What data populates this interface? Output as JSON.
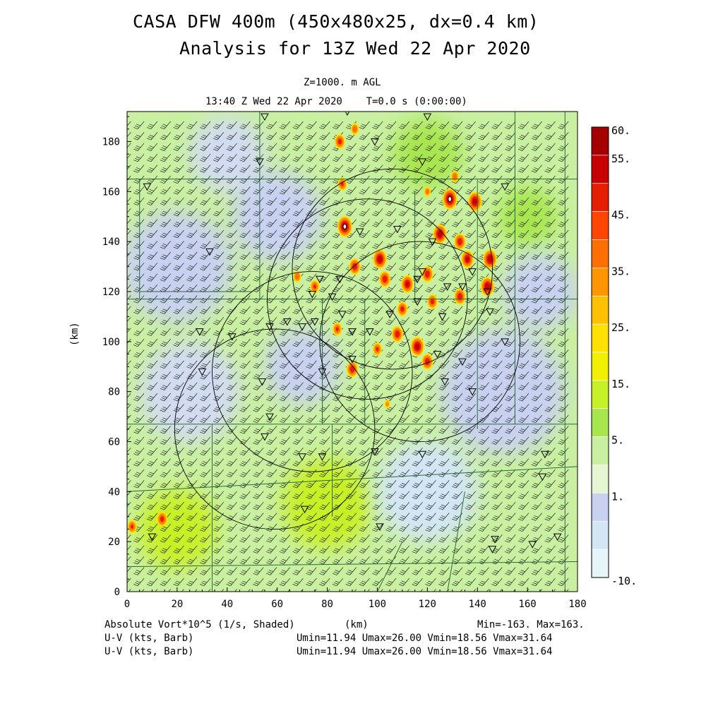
{
  "header": {
    "title_line1": "CASA DFW 400m (450x480x25, dx=0.4 km)",
    "title_line2": "Analysis for 13Z Wed 22 Apr 2020",
    "level": "Z=1000. m AGL",
    "time": "13:40 Z Wed 22 Apr 2020    T=0.0 s (0:00:00)"
  },
  "chart_data": {
    "type": "heatmap",
    "xlabel": "(km)",
    "ylabel": "(km)",
    "xlim": [
      0,
      180
    ],
    "ylim": [
      0,
      192
    ],
    "xticks": [
      "0",
      "20",
      "40",
      "60",
      "80",
      "100",
      "120",
      "140",
      "160",
      "180"
    ],
    "yticks": [
      "0",
      "20",
      "40",
      "60",
      "80",
      "100",
      "120",
      "140",
      "160",
      "180"
    ],
    "field": "Absolute Vort*10^5 (1/s, Shaded)",
    "min_label": "Min=-163.",
    "max_label": "Max=163.",
    "colorbar": {
      "labels": [
        "60.",
        "55.",
        "45.",
        "35.",
        "25.",
        "15.",
        "5.",
        "1.",
        "-10."
      ],
      "colors": [
        "#a50000",
        "#c80000",
        "#e61e00",
        "#ff4600",
        "#ff6e00",
        "#ff9600",
        "#ffc000",
        "#ffe100",
        "#f0f000",
        "#c8f028",
        "#a8e650",
        "#c8f0a0",
        "#e6f5d2",
        "#c8d2f0",
        "#d2e6f5",
        "#e6f5fa"
      ]
    },
    "radar_centers_km": [
      [
        96,
        117
      ],
      [
        74,
        88
      ],
      [
        117,
        100
      ],
      [
        59,
        65
      ],
      [
        106,
        129
      ]
    ],
    "radar_range_km": 40,
    "hotspots": [
      {
        "x": 87,
        "y": 146,
        "v": 60
      },
      {
        "x": 91,
        "y": 130,
        "v": 45
      },
      {
        "x": 101,
        "y": 133,
        "v": 55
      },
      {
        "x": 103,
        "y": 125,
        "v": 45
      },
      {
        "x": 112,
        "y": 123,
        "v": 50
      },
      {
        "x": 120,
        "y": 127,
        "v": 45
      },
      {
        "x": 125,
        "y": 143,
        "v": 55
      },
      {
        "x": 129,
        "y": 157,
        "v": 60
      },
      {
        "x": 139,
        "y": 156,
        "v": 55
      },
      {
        "x": 133,
        "y": 140,
        "v": 45
      },
      {
        "x": 136,
        "y": 133,
        "v": 50
      },
      {
        "x": 145,
        "y": 133,
        "v": 55
      },
      {
        "x": 144,
        "y": 122,
        "v": 55
      },
      {
        "x": 133,
        "y": 118,
        "v": 45
      },
      {
        "x": 122,
        "y": 116,
        "v": 40
      },
      {
        "x": 110,
        "y": 113,
        "v": 40
      },
      {
        "x": 108,
        "y": 103,
        "v": 45
      },
      {
        "x": 116,
        "y": 98,
        "v": 55
      },
      {
        "x": 120,
        "y": 92,
        "v": 45
      },
      {
        "x": 100,
        "y": 97,
        "v": 35
      },
      {
        "x": 90,
        "y": 89,
        "v": 45
      },
      {
        "x": 84,
        "y": 105,
        "v": 35
      },
      {
        "x": 75,
        "y": 122,
        "v": 35
      },
      {
        "x": 68,
        "y": 126,
        "v": 30
      },
      {
        "x": 86,
        "y": 163,
        "v": 35
      },
      {
        "x": 85,
        "y": 180,
        "v": 40
      },
      {
        "x": 91,
        "y": 185,
        "v": 30
      },
      {
        "x": 120,
        "y": 160,
        "v": 25
      },
      {
        "x": 131,
        "y": 166,
        "v": 30
      },
      {
        "x": 2,
        "y": 26,
        "v": 35
      },
      {
        "x": 14,
        "y": 29,
        "v": 40
      },
      {
        "x": 104,
        "y": 75,
        "v": 20
      }
    ],
    "triangles_km": [
      [
        55,
        190
      ],
      [
        120,
        190
      ],
      [
        88,
        192
      ],
      [
        99,
        180
      ],
      [
        53,
        172
      ],
      [
        118,
        172
      ],
      [
        151,
        162
      ],
      [
        33,
        136
      ],
      [
        93,
        144
      ],
      [
        108,
        145
      ],
      [
        122,
        140
      ],
      [
        85,
        125
      ],
      [
        77,
        125
      ],
      [
        74,
        119
      ],
      [
        82,
        118
      ],
      [
        86,
        111
      ],
      [
        90,
        104
      ],
      [
        105,
        111
      ],
      [
        116,
        116
      ],
      [
        126,
        110
      ],
      [
        145,
        112
      ],
      [
        144,
        120
      ],
      [
        134,
        122
      ],
      [
        128,
        122
      ],
      [
        116,
        125
      ],
      [
        118,
        128
      ],
      [
        138,
        128
      ],
      [
        75,
        108
      ],
      [
        70,
        106
      ],
      [
        64,
        108
      ],
      [
        57,
        106
      ],
      [
        29,
        104
      ],
      [
        42,
        102
      ],
      [
        97,
        104
      ],
      [
        124,
        95
      ],
      [
        134,
        92
      ],
      [
        151,
        100
      ],
      [
        30,
        88
      ],
      [
        54,
        84
      ],
      [
        78,
        88
      ],
      [
        90,
        93
      ],
      [
        127,
        84
      ],
      [
        138,
        80
      ],
      [
        57,
        70
      ],
      [
        55,
        62
      ],
      [
        70,
        54
      ],
      [
        78,
        54
      ],
      [
        99,
        56
      ],
      [
        118,
        55
      ],
      [
        167,
        55
      ],
      [
        166,
        46
      ],
      [
        10,
        22
      ],
      [
        101,
        26
      ],
      [
        147,
        21
      ],
      [
        146,
        17
      ],
      [
        162,
        19
      ],
      [
        172,
        22
      ],
      [
        71,
        33
      ],
      [
        8,
        162
      ]
    ],
    "counties": [
      [
        [
          0,
          165
        ],
        [
          180,
          165
        ]
      ],
      [
        [
          5,
          120
        ],
        [
          50,
          120
        ]
      ],
      [
        [
          0,
          117
        ],
        [
          180,
          117
        ]
      ],
      [
        [
          0,
          67
        ],
        [
          180,
          67
        ]
      ],
      [
        [
          5,
          117
        ],
        [
          5,
          165
        ]
      ],
      [
        [
          53,
          117
        ],
        [
          53,
          192
        ]
      ],
      [
        [
          78,
          67
        ],
        [
          78,
          117
        ]
      ],
      [
        [
          95,
          67
        ],
        [
          95,
          117
        ]
      ],
      [
        [
          115,
          117
        ],
        [
          115,
          160
        ]
      ],
      [
        [
          140,
          65
        ],
        [
          140,
          165
        ]
      ],
      [
        [
          155,
          67
        ],
        [
          155,
          192
        ]
      ],
      [
        [
          175,
          0
        ],
        [
          175,
          192
        ]
      ],
      [
        [
          34,
          0
        ],
        [
          34,
          67
        ]
      ],
      [
        [
          82,
          30
        ],
        [
          82,
          67
        ]
      ],
      [
        [
          0,
          40
        ],
        [
          180,
          50
        ]
      ],
      [
        [
          0,
          10
        ],
        [
          180,
          12
        ]
      ],
      [
        [
          100,
          0
        ],
        [
          110,
          20
        ]
      ],
      [
        [
          128,
          0
        ],
        [
          135,
          40
        ]
      ]
    ],
    "wind": {
      "u_kts": [
        11.94,
        26.0
      ],
      "v_kts": [
        18.56,
        31.64
      ],
      "direction_deg": 220,
      "speed_kts": 30,
      "grid_km": [
        0,
        180,
        192
      ]
    }
  },
  "footer": {
    "field": "Absolute Vort*10^5 (1/s, Shaded)",
    "xlabel": "(km)",
    "minmax": "Min=-163. Max=163.",
    "wind1": "U-V (kts, Barb)",
    "wind2": "U-V (kts, Barb)",
    "stats1": "Umin=11.94 Umax=26.00 Vmin=18.56 Vmax=31.64",
    "stats2": "Umin=11.94 Umax=26.00 Vmin=18.56 Vmax=31.64"
  }
}
